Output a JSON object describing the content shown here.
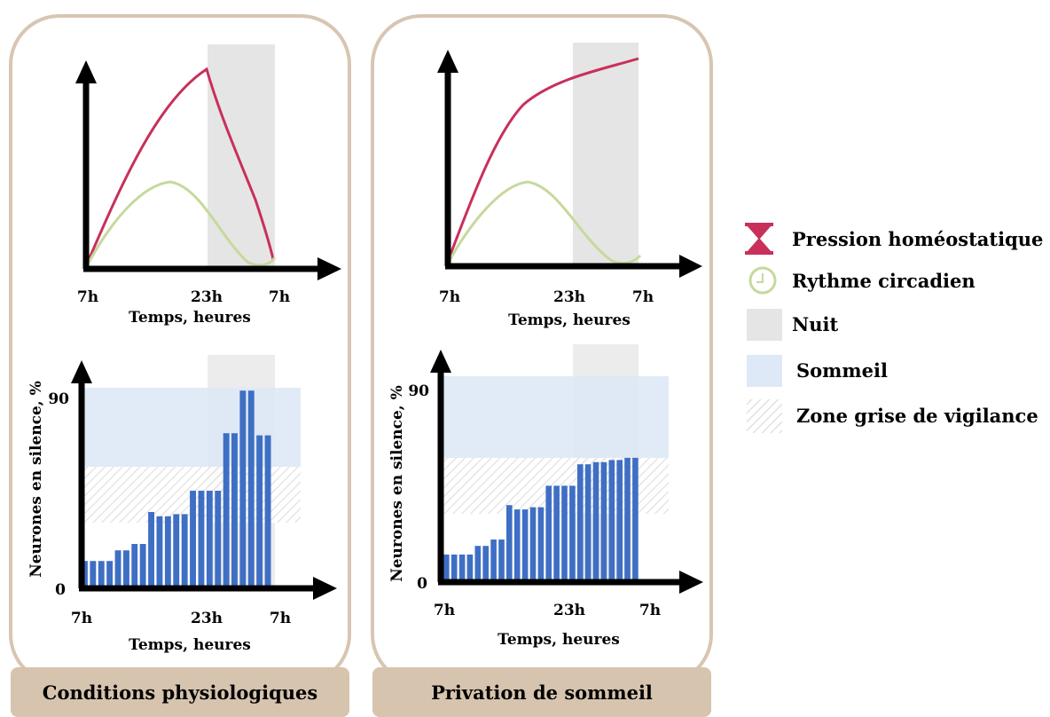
{
  "colors": {
    "homeostatic": "#c8305a",
    "circadian": "#c6d99c",
    "night": "#e5e5e5",
    "sleep": "#dde9f6",
    "bars": "#3f6fc4",
    "frame": "#d8c5b2",
    "footer": "#d7c4ae"
  },
  "panels": [
    {
      "id": "physio",
      "footer": "Conditions physiologiques",
      "top_chart": {
        "x_ticks": [
          "7h",
          "23h",
          "7h"
        ],
        "xlabel": "Temps, heures"
      },
      "bottom_chart": {
        "x_ticks": [
          "7h",
          "23h",
          "7h"
        ],
        "xlabel": "Temps, heures",
        "ylabel": "Neurones en silence, %",
        "y_min_label": "0",
        "y_max_label": "90"
      }
    },
    {
      "id": "privation",
      "footer": "Privation de sommeil",
      "top_chart": {
        "x_ticks": [
          "7h",
          "23h",
          "7h"
        ],
        "xlabel": "Temps, heures"
      },
      "bottom_chart": {
        "x_ticks": [
          "7h",
          "23h",
          "7h"
        ],
        "xlabel": "Temps, heures",
        "ylabel": "Neurones en silence, %",
        "y_min_label": "0",
        "y_max_label": "90"
      }
    }
  ],
  "legend": [
    {
      "icon": "hourglass-icon",
      "label": "Pression homéostatique"
    },
    {
      "icon": "clock-icon",
      "label": "Rythme circadien"
    },
    {
      "icon": "night-swatch",
      "label": "Nuit"
    },
    {
      "icon": "sleep-swatch",
      "label": "Sommeil"
    },
    {
      "icon": "hatch-swatch",
      "label": "Zone grise de vigilance"
    }
  ],
  "chart_data": [
    {
      "panel": "Conditions physiologiques",
      "type": "line",
      "x_ticks": [
        "7h",
        "23h",
        "7h"
      ],
      "xlabel": "Temps, heures",
      "night_span_hours": [
        16,
        24
      ],
      "series": [
        {
          "name": "Pression homéostatique",
          "x": [
            0,
            4,
            8,
            12,
            16,
            18,
            20,
            22,
            24
          ],
          "y": [
            0.0,
            0.56,
            0.82,
            0.94,
            1.0,
            0.62,
            0.38,
            0.2,
            0.0
          ]
        },
        {
          "name": "Rythme circadien",
          "x": [
            0,
            2,
            4,
            6,
            8,
            10,
            12,
            14,
            16,
            18,
            20,
            22,
            24
          ],
          "y": [
            0.0,
            0.16,
            0.3,
            0.38,
            0.4,
            0.38,
            0.31,
            0.21,
            0.11,
            0.04,
            0.01,
            0.0,
            0.01
          ]
        }
      ]
    },
    {
      "panel": "Privation de sommeil",
      "type": "line",
      "x_ticks": [
        "7h",
        "23h",
        "7h"
      ],
      "xlabel": "Temps, heures",
      "night_span_hours": [
        16,
        24
      ],
      "series": [
        {
          "name": "Pression homéostatique",
          "x": [
            0,
            2,
            4,
            6,
            8,
            12,
            16,
            20,
            24
          ],
          "y": [
            0.0,
            0.28,
            0.5,
            0.66,
            0.76,
            0.85,
            0.9,
            0.94,
            0.96
          ]
        },
        {
          "name": "Rythme circadien",
          "x": [
            0,
            2,
            4,
            6,
            8,
            10,
            12,
            14,
            16,
            18,
            20,
            22,
            24
          ],
          "y": [
            0.0,
            0.15,
            0.29,
            0.37,
            0.4,
            0.38,
            0.31,
            0.2,
            0.09,
            0.03,
            0.0,
            0.0,
            0.01
          ]
        }
      ]
    },
    {
      "panel": "Conditions physiologiques",
      "type": "bar",
      "x_ticks": [
        "7h",
        "23h",
        "7h"
      ],
      "xlabel": "Temps, heures",
      "ylabel": "Neurones en silence, %",
      "ylim": [
        0,
        90
      ],
      "night_span_hours": [
        16,
        24
      ],
      "sleep_band": [
        50,
        90
      ],
      "grey_zone_band": [
        32,
        52
      ],
      "values": [
        12,
        12,
        12,
        12,
        17,
        17,
        20,
        20,
        35,
        33,
        33,
        34,
        34,
        45,
        45,
        45,
        45,
        72,
        72,
        92,
        92,
        71,
        71
      ],
      "x_hours": [
        0.0,
        0.7,
        1.4,
        2.1,
        2.8,
        3.5,
        4.2,
        4.9,
        5.6,
        6.3,
        7.0,
        7.7,
        8.4,
        9.1,
        9.8,
        10.5,
        11.2,
        11.9,
        12.6,
        13.3,
        14.0,
        14.7,
        15.4
      ]
    },
    {
      "panel": "Privation de sommeil",
      "type": "bar",
      "x_ticks": [
        "7h",
        "23h",
        "7h"
      ],
      "xlabel": "Temps, heures",
      "ylabel": "Neurones en silence, %",
      "ylim": [
        0,
        90
      ],
      "night_span_hours": [
        16,
        24
      ],
      "sleep_band": [
        57,
        91
      ],
      "grey_zone_band": [
        31,
        57
      ],
      "values": [
        12,
        12,
        12,
        12,
        16,
        16,
        19,
        19,
        35,
        33,
        33,
        34,
        34,
        44,
        44,
        44,
        44,
        54,
        54,
        55,
        55,
        56,
        56,
        57,
        57
      ]
    }
  ]
}
